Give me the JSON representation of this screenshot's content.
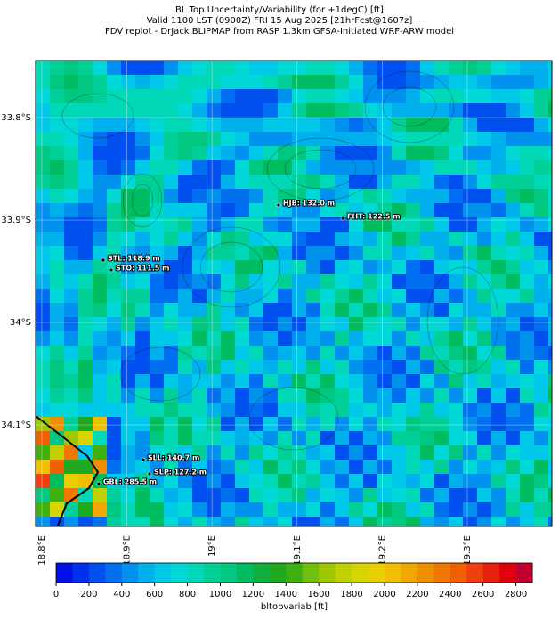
{
  "header": {
    "title_lines": [
      "BL Top Uncertainty/Variability (for +1degC) [ft]",
      "Valid 1100 LST (0900Z) FRI 15 Aug 2025 [21hrFcst@1607z]",
      "FDV replot - DrJack BLIPMAP from RASP 1.3km GFSA-Initiated WRF-ARW model"
    ]
  },
  "map": {
    "xlim": [
      18.7927,
      19.3994
    ],
    "ylim": [
      -33.7443,
      -34.1991
    ],
    "xticks": [
      {
        "value": 18.8,
        "label": "18.8°E"
      },
      {
        "value": 18.9,
        "label": "18.9°E"
      },
      {
        "value": 19.0,
        "label": "19°E"
      },
      {
        "value": 19.1,
        "label": "19.1°E"
      },
      {
        "value": 19.2,
        "label": "19.2°E"
      },
      {
        "value": 19.3,
        "label": "19.3°E"
      }
    ],
    "yticks": [
      {
        "value": -33.8,
        "label": "33.8°S"
      },
      {
        "value": -33.9,
        "label": "33.9°S"
      },
      {
        "value": -34.0,
        "label": "34°S"
      },
      {
        "value": -34.1,
        "label": "34.1°S"
      }
    ],
    "grid": true,
    "stations": [
      {
        "label": "HJB: 132.0 m",
        "lon": 19.0782,
        "lat": -33.8852
      },
      {
        "label": "FHT: 122.5 m",
        "lon": 19.1536,
        "lat": -33.8983
      },
      {
        "label": "STL: 118.9 m",
        "lon": 18.8722,
        "lat": -33.9391
      },
      {
        "label": "STO: 111.5 m",
        "lon": 18.8816,
        "lat": -33.9487
      },
      {
        "label": "SLL: 140.7 m",
        "lon": 18.9192,
        "lat": -34.1339
      },
      {
        "label": "SLP: 127.2 m",
        "lon": 18.9266,
        "lat": -34.1478
      },
      {
        "label": "GBL: 285.5 m",
        "lon": 18.8669,
        "lat": -34.1574
      }
    ]
  },
  "colorbar": {
    "label": "bltopvariab [ft]",
    "lim": [
      0,
      2900
    ],
    "ticks": [
      0,
      200,
      400,
      600,
      800,
      1000,
      1200,
      1400,
      1600,
      1800,
      2000,
      2200,
      2400,
      2600,
      2800
    ],
    "colors": [
      "#0010e6",
      "#0030ee",
      "#0050f0",
      "#0070f0",
      "#0090ee",
      "#00b0ec",
      "#00c8e8",
      "#00d8d8",
      "#00d8b8",
      "#00d098",
      "#00c880",
      "#00bc60",
      "#10b040",
      "#20a820",
      "#40b010",
      "#70c010",
      "#a0c800",
      "#c0d000",
      "#d8d400",
      "#e8d000",
      "#f0c000",
      "#f0a800",
      "#f09000",
      "#f07800",
      "#f06000",
      "#f04010",
      "#e82010",
      "#e00010",
      "#c00030"
    ]
  }
}
